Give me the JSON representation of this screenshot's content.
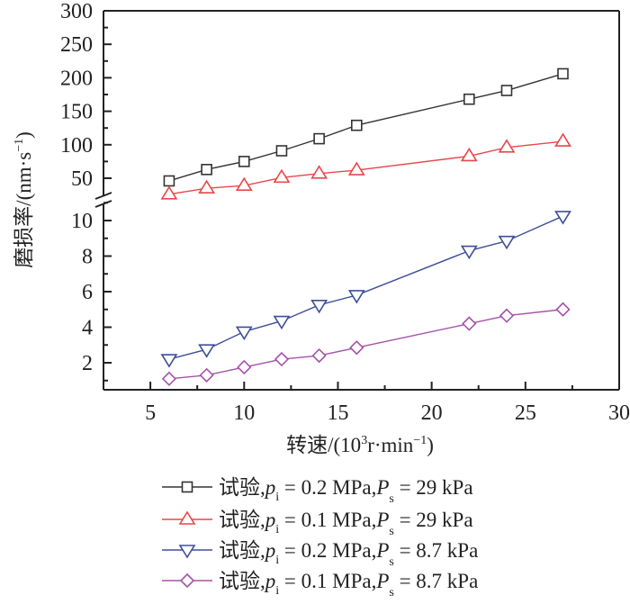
{
  "chart_data": {
    "type": "line",
    "title": "",
    "xlabel": "转速/(10³r·min⁻¹)",
    "xlabel_parts": {
      "main": "转速/(10",
      "sup1": "3",
      "mid": "r·min",
      "sup2": "−1",
      "end": ")"
    },
    "ylabel": "磨损率/(nm·s⁻¹)",
    "ylabel_parts": {
      "main": "磨损率/(nm·s",
      "sup": "−1",
      "end": ")"
    },
    "xlim": [
      2.5,
      30
    ],
    "x_ticks": [
      5,
      10,
      15,
      20,
      25,
      30
    ],
    "x_tick_labels": [
      "5",
      "10",
      "15",
      "20",
      "25",
      "30"
    ],
    "y_axis_break": true,
    "y_upper_range": [
      30,
      300
    ],
    "y_upper_ticks": [
      50,
      100,
      150,
      200,
      250,
      300
    ],
    "y_upper_tick_labels": [
      "50",
      "100",
      "150",
      "200",
      "250",
      "300"
    ],
    "y_lower_range": [
      0.5,
      11.2
    ],
    "y_lower_ticks": [
      2,
      4,
      6,
      8,
      10
    ],
    "y_lower_tick_labels": [
      "2",
      "4",
      "6",
      "8",
      "10"
    ],
    "grid": false,
    "legend_position": "below",
    "x": [
      6,
      8,
      10,
      12,
      14,
      16,
      22,
      24,
      27
    ],
    "series": [
      {
        "name": "试验,pi = 0.2 MPa,Ps = 29 kPa",
        "panel": "upper",
        "marker": "square",
        "color": "#333333",
        "legend": {
          "prefix": "试验,",
          "p": "p",
          "psub": "i",
          "mid": " = 0.2 MPa,",
          "P": "P",
          "Psub": "s",
          "end": " = 29 kPa"
        },
        "values": [
          46,
          63,
          75,
          91,
          109,
          129,
          168,
          181,
          206
        ]
      },
      {
        "name": "试验,pi = 0.1 MPa,Ps = 29 kPa",
        "panel": "upper",
        "marker": "triangle-up",
        "color": "#e8474a",
        "legend": {
          "prefix": "试验,",
          "p": "p",
          "psub": "i",
          "mid": " = 0.1 MPa,",
          "P": "P",
          "Psub": "s",
          "end": " = 29 kPa"
        },
        "values": [
          26,
          35,
          39,
          51,
          57,
          62,
          83,
          96,
          105
        ]
      },
      {
        "name": "试验,pi = 0.2 MPa,Ps = 8.7 kPa",
        "panel": "lower",
        "marker": "triangle-down",
        "color": "#3f4f9a",
        "legend": {
          "prefix": "试验,",
          "p": "p",
          "psub": "i",
          "mid": " = 0.2 MPa,",
          "P": "P",
          "Psub": "s",
          "end": " = 8.7 kPa"
        },
        "values": [
          2.2,
          2.75,
          3.75,
          4.35,
          5.25,
          5.8,
          8.3,
          8.85,
          10.25
        ]
      },
      {
        "name": "试验,pi = 0.1 MPa,Ps = 8.7 kPa",
        "panel": "lower",
        "marker": "diamond",
        "color": "#a553a8",
        "legend": {
          "prefix": "试验,",
          "p": "p",
          "psub": "i",
          "mid": " = 0.1 MPa,",
          "P": "P",
          "Psub": "s",
          "end": " = 8.7 kPa"
        },
        "values": [
          1.1,
          1.3,
          1.75,
          2.2,
          2.4,
          2.85,
          4.2,
          4.65,
          5.0
        ]
      }
    ]
  }
}
